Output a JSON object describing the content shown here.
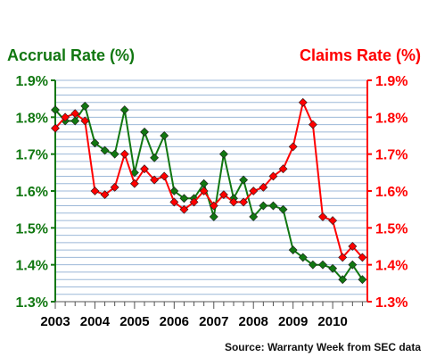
{
  "colors": {
    "accrual": "#117711",
    "claims": "#ff0000",
    "grid": "#9cb8d8",
    "xaxis": "#555555"
  },
  "chart_data": {
    "type": "line",
    "title": "",
    "left_axis_title": "Accrual Rate (%)",
    "right_axis_title": "Claims Rate (%)",
    "source": "Source: Warranty Week from SEC data",
    "ylim": [
      1.3,
      1.9
    ],
    "y_ticks": [
      "1.3%",
      "1.4%",
      "1.5%",
      "1.6%",
      "1.7%",
      "1.8%",
      "1.9%"
    ],
    "x_tick_labels": [
      "2003",
      "2004",
      "2005",
      "2006",
      "2007",
      "2008",
      "2009",
      "2010"
    ],
    "xlim": [
      2003.0,
      2010.875
    ],
    "grid": true,
    "series": [
      {
        "name": "Accrual Rate (%)",
        "axis": "left",
        "x": [
          2003.0,
          2003.25,
          2003.5,
          2003.75,
          2004.0,
          2004.25,
          2004.5,
          2004.75,
          2005.0,
          2005.25,
          2005.5,
          2005.75,
          2006.0,
          2006.25,
          2006.5,
          2006.75,
          2007.0,
          2007.25,
          2007.5,
          2007.75,
          2008.0,
          2008.25,
          2008.5,
          2008.75,
          2009.0,
          2009.25,
          2009.5,
          2009.75,
          2010.0,
          2010.25,
          2010.5,
          2010.75
        ],
        "values": [
          1.82,
          1.79,
          1.79,
          1.83,
          1.73,
          1.71,
          1.7,
          1.82,
          1.65,
          1.76,
          1.69,
          1.75,
          1.6,
          1.58,
          1.58,
          1.62,
          1.53,
          1.7,
          1.58,
          1.63,
          1.53,
          1.56,
          1.56,
          1.55,
          1.44,
          1.42,
          1.4,
          1.4,
          1.39,
          1.36,
          1.4,
          1.36
        ]
      },
      {
        "name": "Claims Rate (%)",
        "axis": "right",
        "x": [
          2003.0,
          2003.25,
          2003.5,
          2003.75,
          2004.0,
          2004.25,
          2004.5,
          2004.75,
          2005.0,
          2005.25,
          2005.5,
          2005.75,
          2006.0,
          2006.25,
          2006.5,
          2006.75,
          2007.0,
          2007.25,
          2007.5,
          2007.75,
          2008.0,
          2008.25,
          2008.5,
          2008.75,
          2009.0,
          2009.25,
          2009.5,
          2009.75,
          2010.0,
          2010.25,
          2010.5,
          2010.75
        ],
        "values": [
          1.77,
          1.8,
          1.81,
          1.79,
          1.6,
          1.59,
          1.61,
          1.7,
          1.62,
          1.66,
          1.63,
          1.64,
          1.57,
          1.55,
          1.57,
          1.6,
          1.56,
          1.59,
          1.57,
          1.57,
          1.6,
          1.61,
          1.64,
          1.66,
          1.72,
          1.84,
          1.78,
          1.53,
          1.52,
          1.42,
          1.45,
          1.42
        ]
      }
    ]
  }
}
